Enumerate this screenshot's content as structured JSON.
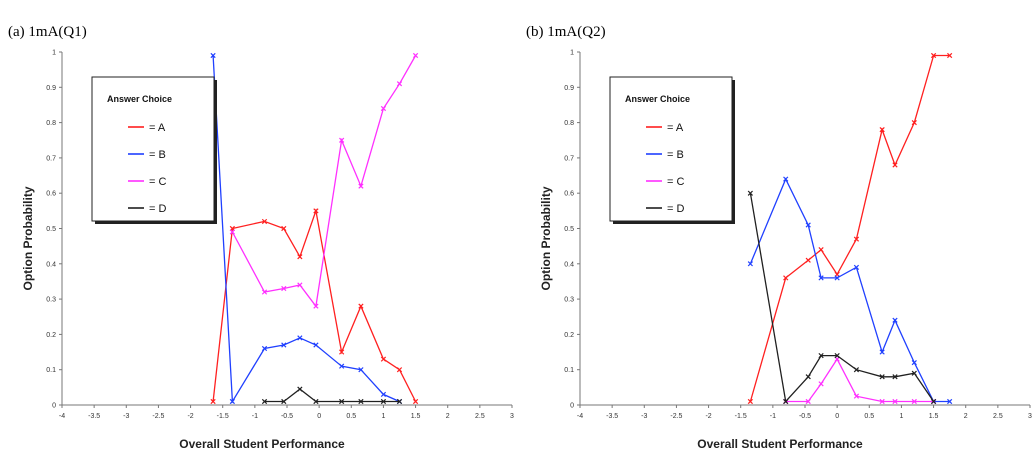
{
  "chart_data": [
    {
      "type": "line",
      "title": "(a) 1mA(Q1)",
      "xlabel": "Overall Student Performance",
      "ylabel": "Option Probability",
      "xlim": [
        -4,
        3
      ],
      "ylim": [
        0,
        1
      ],
      "xticks": [
        "-4",
        "-3.5",
        "-3",
        "-2.5",
        "-2",
        "-1.5",
        "-1",
        "-0.5",
        "0",
        "0.5",
        "1",
        "1.5",
        "2",
        "2.5",
        "3"
      ],
      "yticks": [
        "0",
        "0.1",
        "0.2",
        "0.3",
        "0.4",
        "0.5",
        "0.6",
        "0.7",
        "0.8",
        "0.9",
        "1"
      ],
      "legend": {
        "title": "Answer Choice",
        "position": "top-left"
      },
      "series": [
        {
          "name": "= A",
          "color": "#ff2020",
          "x": [
            -1.65,
            -1.35,
            -0.85,
            -0.55,
            -0.3,
            -0.05,
            0.35,
            0.65,
            1.0,
            1.25,
            1.5
          ],
          "y": [
            0.01,
            0.5,
            0.52,
            0.5,
            0.42,
            0.55,
            0.15,
            0.28,
            0.13,
            0.1,
            0.01
          ]
        },
        {
          "name": "= B",
          "color": "#2040ff",
          "x": [
            -1.65,
            -1.35,
            -0.85,
            -0.55,
            -0.3,
            -0.05,
            0.35,
            0.65,
            1.0,
            1.25
          ],
          "y": [
            0.99,
            0.01,
            0.16,
            0.17,
            0.19,
            0.17,
            0.11,
            0.1,
            0.03,
            0.01
          ]
        },
        {
          "name": "= C",
          "color": "#ff30ff",
          "x": [
            -1.35,
            -0.85,
            -0.55,
            -0.3,
            -0.05,
            0.35,
            0.65,
            1.0,
            1.25,
            1.5
          ],
          "y": [
            0.49,
            0.32,
            0.33,
            0.34,
            0.28,
            0.75,
            0.62,
            0.84,
            0.91,
            0.99
          ]
        },
        {
          "name": "= D",
          "color": "#202020",
          "x": [
            -0.85,
            -0.55,
            -0.3,
            -0.05,
            0.35,
            0.65,
            1.0,
            1.25
          ],
          "y": [
            0.01,
            0.01,
            0.045,
            0.01,
            0.01,
            0.01,
            0.01,
            0.01
          ]
        }
      ]
    },
    {
      "type": "line",
      "title": "(b) 1mA(Q2)",
      "xlabel": "Overall Student Performance",
      "ylabel": "Option Probability",
      "xlim": [
        -4,
        3
      ],
      "ylim": [
        0,
        1
      ],
      "xticks": [
        "-4",
        "-3.5",
        "-3",
        "-2.5",
        "-2",
        "-1.5",
        "-1",
        "-0.5",
        "0",
        "0.5",
        "1",
        "1.5",
        "2",
        "2.5",
        "3"
      ],
      "yticks": [
        "0",
        "0.1",
        "0.2",
        "0.3",
        "0.4",
        "0.5",
        "0.6",
        "0.7",
        "0.8",
        "0.9",
        "1"
      ],
      "legend": {
        "title": "Answer Choice",
        "position": "top-left"
      },
      "series": [
        {
          "name": "= A",
          "color": "#ff2020",
          "x": [
            -1.35,
            -0.8,
            -0.45,
            -0.25,
            0.0,
            0.3,
            0.7,
            0.9,
            1.2,
            1.5,
            1.75
          ],
          "y": [
            0.01,
            0.36,
            0.41,
            0.44,
            0.37,
            0.47,
            0.78,
            0.68,
            0.8,
            0.99,
            0.99
          ]
        },
        {
          "name": "= B",
          "color": "#2040ff",
          "x": [
            -1.35,
            -0.8,
            -0.45,
            -0.25,
            0.0,
            0.3,
            0.7,
            0.9,
            1.2,
            1.5,
            1.75
          ],
          "y": [
            0.4,
            0.64,
            0.51,
            0.36,
            0.36,
            0.39,
            0.15,
            0.24,
            0.12,
            0.01,
            0.01
          ]
        },
        {
          "name": "= C",
          "color": "#ff30ff",
          "x": [
            -0.8,
            -0.45,
            -0.25,
            0.0,
            0.3,
            0.7,
            0.9,
            1.2,
            1.5
          ],
          "y": [
            0.01,
            0.01,
            0.06,
            0.13,
            0.025,
            0.01,
            0.01,
            0.01,
            0.01
          ]
        },
        {
          "name": "= D",
          "color": "#202020",
          "x": [
            -1.35,
            -0.8,
            -0.45,
            -0.25,
            0.0,
            0.3,
            0.7,
            0.9,
            1.2,
            1.5
          ],
          "y": [
            0.6,
            0.01,
            0.08,
            0.14,
            0.14,
            0.1,
            0.08,
            0.08,
            0.09,
            0.01
          ]
        }
      ]
    }
  ]
}
